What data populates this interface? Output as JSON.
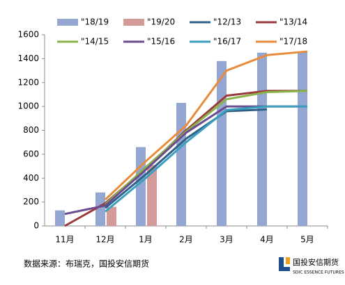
{
  "chart_data": {
    "type": "bar",
    "categories": [
      "11月",
      "12月",
      "1月",
      "2月",
      "3月",
      "4月",
      "5月"
    ],
    "series": [
      {
        "name": "\"18/19",
        "type": "bar",
        "color": "#94a7d3",
        "values": [
          130,
          280,
          660,
          1030,
          1380,
          1450,
          1460
        ]
      },
      {
        "name": "\"19/20",
        "type": "bar",
        "color": "#d49a9a",
        "values": [
          null,
          160,
          510,
          null,
          null,
          null,
          null
        ]
      },
      {
        "name": "\"12/13",
        "type": "line",
        "color": "#2f5f86",
        "values": [
          null,
          150,
          430,
          730,
          960,
          975,
          null
        ]
      },
      {
        "name": "\"13/14",
        "type": "line",
        "color": "#9b3a3a",
        "values": [
          0,
          190,
          480,
          800,
          1090,
          1130,
          1130
        ]
      },
      {
        "name": "\"14/15",
        "type": "line",
        "color": "#8ab34a",
        "values": [
          null,
          180,
          490,
          790,
          1060,
          1120,
          1130
        ]
      },
      {
        "name": "\"15/16",
        "type": "line",
        "color": "#6b4c8e",
        "values": [
          100,
          170,
          470,
          780,
          1000,
          1000,
          1000
        ]
      },
      {
        "name": "\"16/17",
        "type": "line",
        "color": "#3a9fbf",
        "values": [
          null,
          120,
          400,
          700,
          970,
          1000,
          1000
        ]
      },
      {
        "name": "\"17/18",
        "type": "line",
        "color": "#e88b3a",
        "values": [
          null,
          220,
          540,
          840,
          1300,
          1430,
          1460
        ]
      }
    ],
    "ylim": [
      0,
      1600
    ],
    "yticks": [
      0,
      200,
      400,
      600,
      800,
      1000,
      1200,
      1400,
      1600
    ],
    "grid": false
  },
  "source": "数据来源：布瑞克，国投安信期货",
  "logo": {
    "name": "国投安信期货",
    "subtitle": "SDIC ESSENCE FUTURES"
  }
}
